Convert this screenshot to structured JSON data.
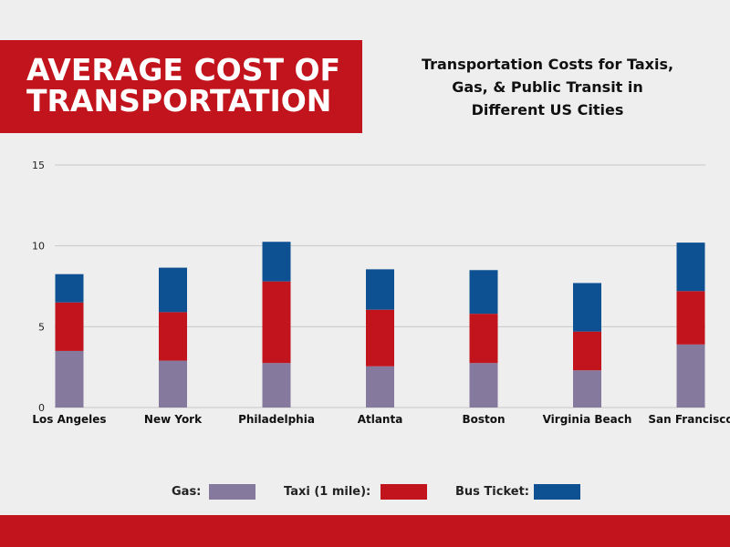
{
  "header": {
    "title_line1": "AVERAGE COST OF",
    "title_line2": "TRANSPORTATION",
    "subtitle_line1": "Transportation Costs for Taxis,",
    "subtitle_line2": "Gas, & Public Transit in",
    "subtitle_line3": "Different US Cities"
  },
  "colors": {
    "banner": "#c2141c",
    "gas": "#86799e",
    "taxi": "#c2141c",
    "bus": "#0e5192",
    "grid": "#c8c8c8"
  },
  "legend": {
    "gas_label": "Gas:",
    "taxi_label": "Taxi (1 mile):",
    "bus_label": "Bus Ticket:"
  },
  "chart_data": {
    "type": "bar",
    "stacked": true,
    "categories": [
      "Los Angeles",
      "New York",
      "Philadelphia",
      "Atlanta",
      "Boston",
      "Virginia Beach",
      "San Francisco"
    ],
    "series": [
      {
        "name": "Gas:",
        "color": "#86799e",
        "values": [
          3.5,
          2.9,
          2.75,
          2.55,
          2.75,
          2.3,
          3.9
        ]
      },
      {
        "name": "Taxi (1 mile):",
        "color": "#c2141c",
        "values": [
          3.0,
          3.0,
          5.05,
          3.5,
          3.05,
          2.4,
          3.3
        ]
      },
      {
        "name": "Bus Ticket:",
        "color": "#0e5192",
        "values": [
          1.75,
          2.75,
          2.45,
          2.5,
          2.7,
          3.0,
          3.0
        ]
      }
    ],
    "ylim": [
      0,
      15
    ],
    "yticks": [
      0,
      5,
      10,
      15
    ],
    "grid": true,
    "legend_position": "bottom"
  }
}
